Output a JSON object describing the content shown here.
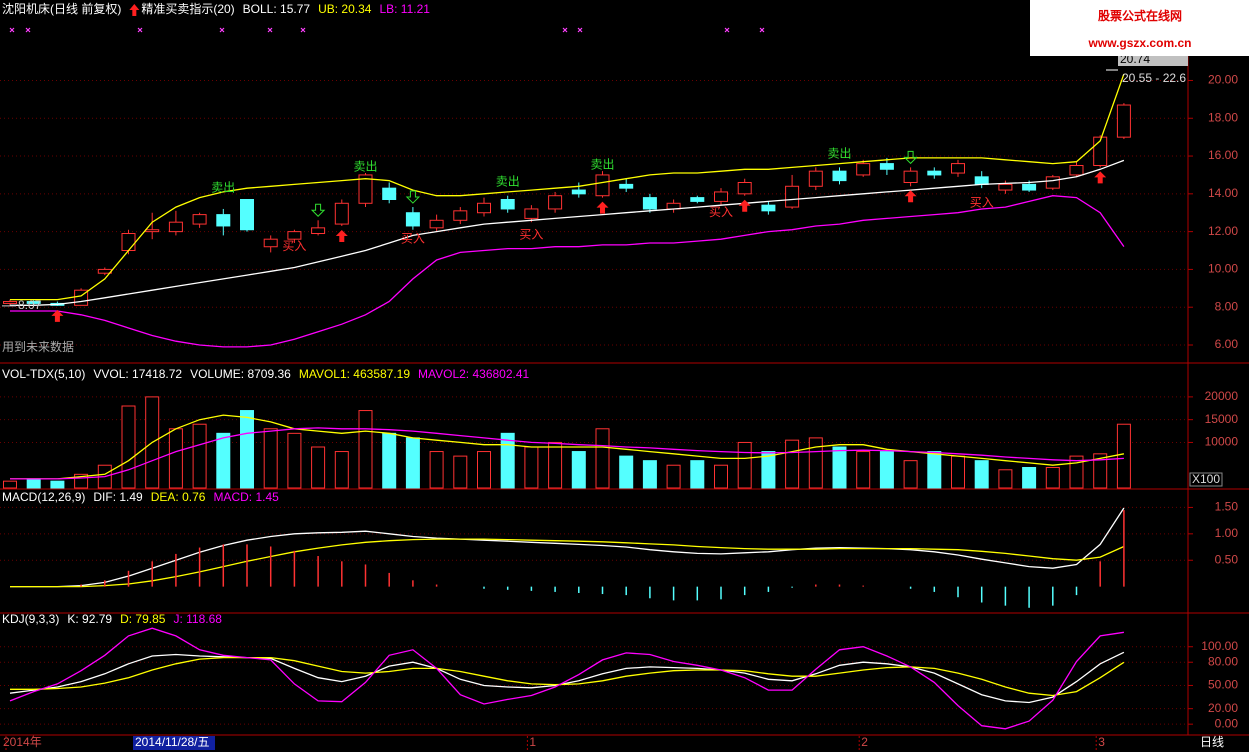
{
  "watermark": {
    "title": "股票公式在线网",
    "url": "www.gszx.com.cn"
  },
  "chart_data": [
    {
      "type": "candlestick",
      "title": "沈阳机床(日线 前复权)",
      "subtitle": "精准买卖指示(20)",
      "up_color": "#ff3232",
      "down_color": "#54ffff",
      "grid": true,
      "ylim": [
        5.1,
        23.2
      ],
      "yticks": [
        {
          "value": 6,
          "label": "6.00"
        },
        {
          "value": 8,
          "label": "8.00"
        },
        {
          "value": 10,
          "label": "10.00"
        },
        {
          "value": 12,
          "label": "12.00"
        },
        {
          "value": 14,
          "label": "14.00"
        },
        {
          "value": 16,
          "label": "16.00"
        },
        {
          "value": 18,
          "label": "18.00"
        },
        {
          "value": 20,
          "label": "20.00"
        }
      ],
      "open": [
        8.2,
        8.3,
        8.2,
        8.1,
        9.8,
        11.0,
        12.0,
        12.0,
        12.4,
        12.9,
        13.7,
        11.2,
        11.6,
        11.9,
        12.4,
        13.5,
        14.3,
        13.0,
        12.2,
        12.6,
        13.0,
        13.7,
        12.7,
        13.2,
        14.2,
        13.9,
        14.5,
        13.8,
        13.2,
        13.8,
        13.6,
        14.0,
        13.4,
        13.3,
        14.4,
        15.2,
        15.0,
        15.6,
        14.6,
        15.2,
        15.1,
        14.9,
        14.2,
        14.5,
        14.3,
        15.0,
        15.5,
        17.0
      ],
      "close": [
        8.3,
        8.2,
        8.1,
        8.9,
        10.0,
        11.9,
        12.1,
        12.5,
        12.9,
        12.3,
        12.1,
        11.6,
        12.0,
        12.2,
        13.5,
        15.0,
        13.7,
        12.3,
        12.6,
        13.1,
        13.5,
        13.2,
        13.2,
        13.9,
        14.0,
        15.0,
        14.3,
        13.2,
        13.5,
        13.6,
        14.1,
        14.6,
        13.1,
        14.4,
        15.2,
        14.7,
        15.6,
        15.3,
        15.2,
        15.0,
        15.6,
        14.5,
        14.5,
        14.2,
        14.9,
        15.5,
        17.0,
        18.7
      ],
      "high": [
        8.4,
        8.4,
        8.3,
        9.0,
        10.1,
        12.1,
        13.0,
        13.1,
        13.0,
        13.2,
        13.7,
        11.8,
        12.1,
        12.6,
        13.7,
        15.1,
        14.6,
        13.3,
        12.9,
        13.3,
        13.8,
        13.9,
        13.4,
        14.1,
        14.6,
        15.2,
        14.8,
        14.0,
        13.7,
        13.9,
        14.3,
        14.8,
        13.6,
        15.0,
        15.4,
        15.4,
        15.8,
        15.9,
        15.4,
        15.4,
        15.8,
        15.2,
        14.7,
        14.7,
        15.0,
        15.7,
        17.1,
        18.8
      ],
      "low": [
        8.1,
        8.1,
        8.07,
        8.1,
        9.7,
        10.8,
        11.6,
        11.8,
        12.2,
        11.8,
        12.0,
        10.9,
        11.4,
        11.8,
        12.3,
        13.3,
        13.5,
        12.1,
        12.0,
        12.4,
        12.8,
        13.0,
        12.5,
        13.0,
        13.8,
        13.8,
        14.1,
        13.0,
        13.0,
        13.5,
        13.4,
        13.9,
        12.9,
        13.2,
        14.2,
        14.5,
        14.9,
        15.0,
        14.4,
        14.8,
        14.9,
        14.3,
        14.0,
        14.1,
        14.2,
        14.9,
        15.4,
        16.9
      ],
      "series": [
        {
          "name": "BOLL: 15.77",
          "color": "#ffffff",
          "values": [
            8.1,
            8.1,
            8.15,
            8.3,
            8.5,
            8.7,
            8.9,
            9.1,
            9.3,
            9.5,
            9.7,
            9.9,
            10.1,
            10.4,
            10.7,
            11.0,
            11.4,
            11.8,
            12.0,
            12.2,
            12.4,
            12.5,
            12.6,
            12.7,
            12.8,
            12.9,
            13.0,
            13.1,
            13.2,
            13.3,
            13.4,
            13.5,
            13.6,
            13.7,
            13.8,
            13.9,
            14.0,
            14.1,
            14.2,
            14.3,
            14.4,
            14.5,
            14.55,
            14.6,
            14.7,
            14.9,
            15.3,
            15.77
          ]
        },
        {
          "name": "UB: 20.34",
          "color": "#ffff00",
          "values": [
            8.4,
            8.4,
            8.4,
            8.6,
            9.5,
            11.0,
            12.5,
            13.3,
            13.8,
            14.1,
            14.3,
            14.4,
            14.5,
            14.6,
            14.7,
            14.8,
            14.7,
            14.2,
            13.9,
            13.9,
            14.0,
            14.1,
            14.2,
            14.3,
            14.4,
            14.6,
            14.8,
            15.0,
            15.1,
            15.1,
            15.2,
            15.3,
            15.3,
            15.4,
            15.5,
            15.6,
            15.7,
            15.8,
            15.9,
            15.9,
            15.9,
            15.9,
            15.8,
            15.7,
            15.6,
            15.7,
            16.8,
            20.34
          ]
        },
        {
          "name": "LB: 11.21",
          "color": "#ff00ff",
          "values": [
            7.8,
            7.8,
            7.8,
            7.6,
            7.3,
            6.9,
            6.5,
            6.2,
            6.0,
            5.9,
            5.9,
            6.0,
            6.3,
            6.7,
            7.1,
            7.6,
            8.3,
            9.5,
            10.5,
            10.9,
            11.0,
            11.1,
            11.1,
            11.2,
            11.2,
            11.3,
            11.3,
            11.4,
            11.4,
            11.5,
            11.6,
            11.8,
            12.0,
            12.1,
            12.3,
            12.4,
            12.6,
            12.7,
            12.8,
            12.9,
            13.0,
            13.2,
            13.3,
            13.6,
            13.9,
            13.8,
            13.0,
            11.21
          ]
        }
      ],
      "annotations": [
        {
          "text": "卖出",
          "color": "#30e030"
        },
        {
          "text": "卖出",
          "color": "#30e030"
        },
        {
          "text": "卖出",
          "color": "#30e030"
        },
        {
          "text": "卖出",
          "color": "#30e030"
        },
        {
          "text": "卖出",
          "color": "#30e030"
        },
        {
          "text": "买入",
          "color": "#ff3030"
        },
        {
          "text": "买入",
          "color": "#ff3030"
        },
        {
          "text": "买入",
          "color": "#ff3030"
        },
        {
          "text": "买入",
          "color": "#ff3030"
        },
        {
          "text": "买入",
          "color": "#ff3030"
        }
      ],
      "low_label": "8.07",
      "note": "用到未来数据",
      "price_marker": "20.74",
      "range_label": "20.55 - 22.6"
    },
    {
      "type": "volume",
      "title": "VOL-TDX(5,10)",
      "label": "VVOL: 17418.72",
      "unit": "X100",
      "grid": true,
      "ylim": [
        0,
        27000
      ],
      "yticks": [
        10000,
        15000,
        20000
      ],
      "series": [
        {
          "name": "VOLUME: 8709.36",
          "type": "bar",
          "color": "#ffffff",
          "values": [
            1500,
            2000,
            1500,
            3000,
            5000,
            18000,
            20000,
            13000,
            14000,
            12000,
            17000,
            13000,
            12000,
            9000,
            8000,
            17000,
            12000,
            11000,
            8000,
            7000,
            8000,
            12000,
            9000,
            10000,
            8000,
            13000,
            7000,
            6000,
            5000,
            6000,
            5000,
            10000,
            8000,
            10500,
            11000,
            9000,
            8000,
            8000,
            6000,
            8000,
            7000,
            6000,
            4000,
            4500,
            4500,
            7000,
            7500,
            14000
          ]
        },
        {
          "name": "MAVOL1: 463587.19",
          "color": "#ffff00",
          "values": [
            2000,
            2000,
            2000,
            2500,
            3000,
            6000,
            10000,
            13000,
            15000,
            16000,
            15500,
            14500,
            13000,
            12500,
            12000,
            12500,
            12000,
            11000,
            10500,
            10000,
            9500,
            9500,
            9000,
            9000,
            9000,
            9000,
            8500,
            8000,
            7500,
            7000,
            6500,
            6500,
            7000,
            8000,
            9000,
            9500,
            9500,
            8500,
            8000,
            7500,
            7000,
            6500,
            6000,
            5500,
            5000,
            5500,
            6500,
            7500
          ]
        },
        {
          "name": "MAVOL2: 436802.41",
          "color": "#ff00ff",
          "values": [
            2000,
            2000,
            2000,
            2200,
            2500,
            4000,
            6000,
            8000,
            9500,
            11000,
            12000,
            12500,
            13000,
            13200,
            13000,
            13000,
            12800,
            12500,
            12000,
            11500,
            11000,
            10500,
            10000,
            9800,
            9500,
            9300,
            9000,
            8800,
            8500,
            8200,
            8000,
            7800,
            7700,
            7800,
            8000,
            8200,
            8300,
            8200,
            8000,
            7800,
            7500,
            7200,
            6800,
            6500,
            6200,
            6000,
            6200,
            6500
          ]
        }
      ]
    },
    {
      "type": "macd",
      "title": "MACD(12,26,9)",
      "grid": true,
      "up_color": "#ff3232",
      "down_color": "#54ffff",
      "ylim": [
        -0.48,
        1.83
      ],
      "yticks": [
        {
          "value": 0.5,
          "label": "0.50"
        },
        {
          "value": 1,
          "label": "1.00"
        },
        {
          "value": 1.5,
          "label": "1.50"
        }
      ],
      "series": [
        {
          "name": "DIF: 1.49",
          "color": "#ffffff",
          "values": [
            0,
            0,
            0,
            0.02,
            0.08,
            0.2,
            0.35,
            0.5,
            0.65,
            0.78,
            0.88,
            0.95,
            1.0,
            1.02,
            1.03,
            1.05,
            1.0,
            0.95,
            0.92,
            0.9,
            0.88,
            0.86,
            0.84,
            0.82,
            0.8,
            0.78,
            0.75,
            0.7,
            0.66,
            0.63,
            0.62,
            0.64,
            0.66,
            0.7,
            0.73,
            0.74,
            0.73,
            0.72,
            0.7,
            0.66,
            0.6,
            0.52,
            0.45,
            0.38,
            0.35,
            0.42,
            0.8,
            1.49
          ]
        },
        {
          "name": "DEA: 0.76",
          "color": "#ffff00",
          "values": [
            0,
            0,
            0,
            0,
            0.02,
            0.05,
            0.11,
            0.19,
            0.28,
            0.38,
            0.48,
            0.57,
            0.66,
            0.73,
            0.79,
            0.84,
            0.87,
            0.89,
            0.9,
            0.9,
            0.9,
            0.89,
            0.88,
            0.87,
            0.86,
            0.85,
            0.83,
            0.81,
            0.79,
            0.76,
            0.74,
            0.72,
            0.71,
            0.71,
            0.71,
            0.72,
            0.72,
            0.72,
            0.72,
            0.71,
            0.7,
            0.67,
            0.63,
            0.58,
            0.53,
            0.5,
            0.56,
            0.76
          ]
        },
        {
          "name": "MACD: 1.45",
          "type": "bar",
          "color": "#ff00ff",
          "values": [
            0,
            0,
            0,
            0.04,
            0.12,
            0.3,
            0.48,
            0.62,
            0.74,
            0.8,
            0.8,
            0.76,
            0.68,
            0.58,
            0.48,
            0.42,
            0.26,
            0.12,
            0.04,
            0,
            -0.04,
            -0.06,
            -0.08,
            -0.1,
            -0.12,
            -0.14,
            -0.16,
            -0.22,
            -0.26,
            -0.26,
            -0.24,
            -0.16,
            -0.1,
            -0.02,
            0.04,
            0.04,
            0.02,
            0,
            -0.04,
            -0.1,
            -0.2,
            -0.3,
            -0.36,
            -0.4,
            -0.36,
            -0.16,
            0.48,
            1.45
          ]
        }
      ]
    },
    {
      "type": "line",
      "title": "KDJ(9,3,3)",
      "grid": true,
      "ylim": [
        -14,
        141
      ],
      "yticks": [
        {
          "value": 0,
          "label": "0.00"
        },
        {
          "value": 20,
          "label": "20.00"
        },
        {
          "value": 50,
          "label": "50.00"
        },
        {
          "value": 80,
          "label": "80.00"
        },
        {
          "value": 100,
          "label": "100.00"
        }
      ],
      "categories": [
        "2014年",
        null,
        null,
        null,
        null,
        null,
        null,
        null,
        null,
        null,
        null,
        null,
        null,
        null,
        null,
        null,
        null,
        null,
        null,
        null,
        null,
        null,
        "1",
        null,
        null,
        null,
        null,
        null,
        null,
        null,
        null,
        null,
        null,
        null,
        null,
        null,
        "2",
        null,
        null,
        null,
        null,
        null,
        null,
        null,
        null,
        null,
        "3",
        null
      ],
      "cursor_label": "2014/11/28/五",
      "period_label": "日线",
      "series": [
        {
          "name": "K: 92.79",
          "color": "#ffffff",
          "values": [
            40,
            44,
            48,
            55,
            65,
            78,
            88,
            90,
            88,
            87,
            86,
            85,
            72,
            60,
            55,
            62,
            75,
            80,
            72,
            58,
            50,
            48,
            47,
            50,
            56,
            65,
            72,
            74,
            73,
            72,
            70,
            66,
            58,
            56,
            65,
            76,
            80,
            78,
            74,
            66,
            52,
            38,
            30,
            28,
            35,
            55,
            78,
            92.79
          ]
        },
        {
          "name": "D: 79.85",
          "color": "#ffff00",
          "values": [
            45,
            45,
            46,
            48,
            53,
            60,
            70,
            78,
            84,
            86,
            86,
            86,
            82,
            75,
            68,
            66,
            68,
            72,
            72,
            68,
            62,
            56,
            52,
            51,
            52,
            56,
            62,
            66,
            69,
            70,
            70,
            69,
            65,
            62,
            62,
            66,
            70,
            73,
            74,
            72,
            66,
            58,
            48,
            40,
            37,
            42,
            60,
            79.85
          ]
        },
        {
          "name": "J: 118.68",
          "color": "#ff00ff",
          "values": [
            30,
            42,
            52,
            69,
            89,
            114,
            124,
            114,
            96,
            89,
            86,
            83,
            52,
            30,
            29,
            54,
            89,
            96,
            72,
            38,
            26,
            32,
            37,
            48,
            64,
            83,
            92,
            90,
            81,
            76,
            70,
            60,
            44,
            44,
            71,
            96,
            100,
            88,
            74,
            54,
            24,
            -2,
            -6,
            4,
            31,
            81,
            114,
            118.68
          ]
        }
      ]
    }
  ]
}
